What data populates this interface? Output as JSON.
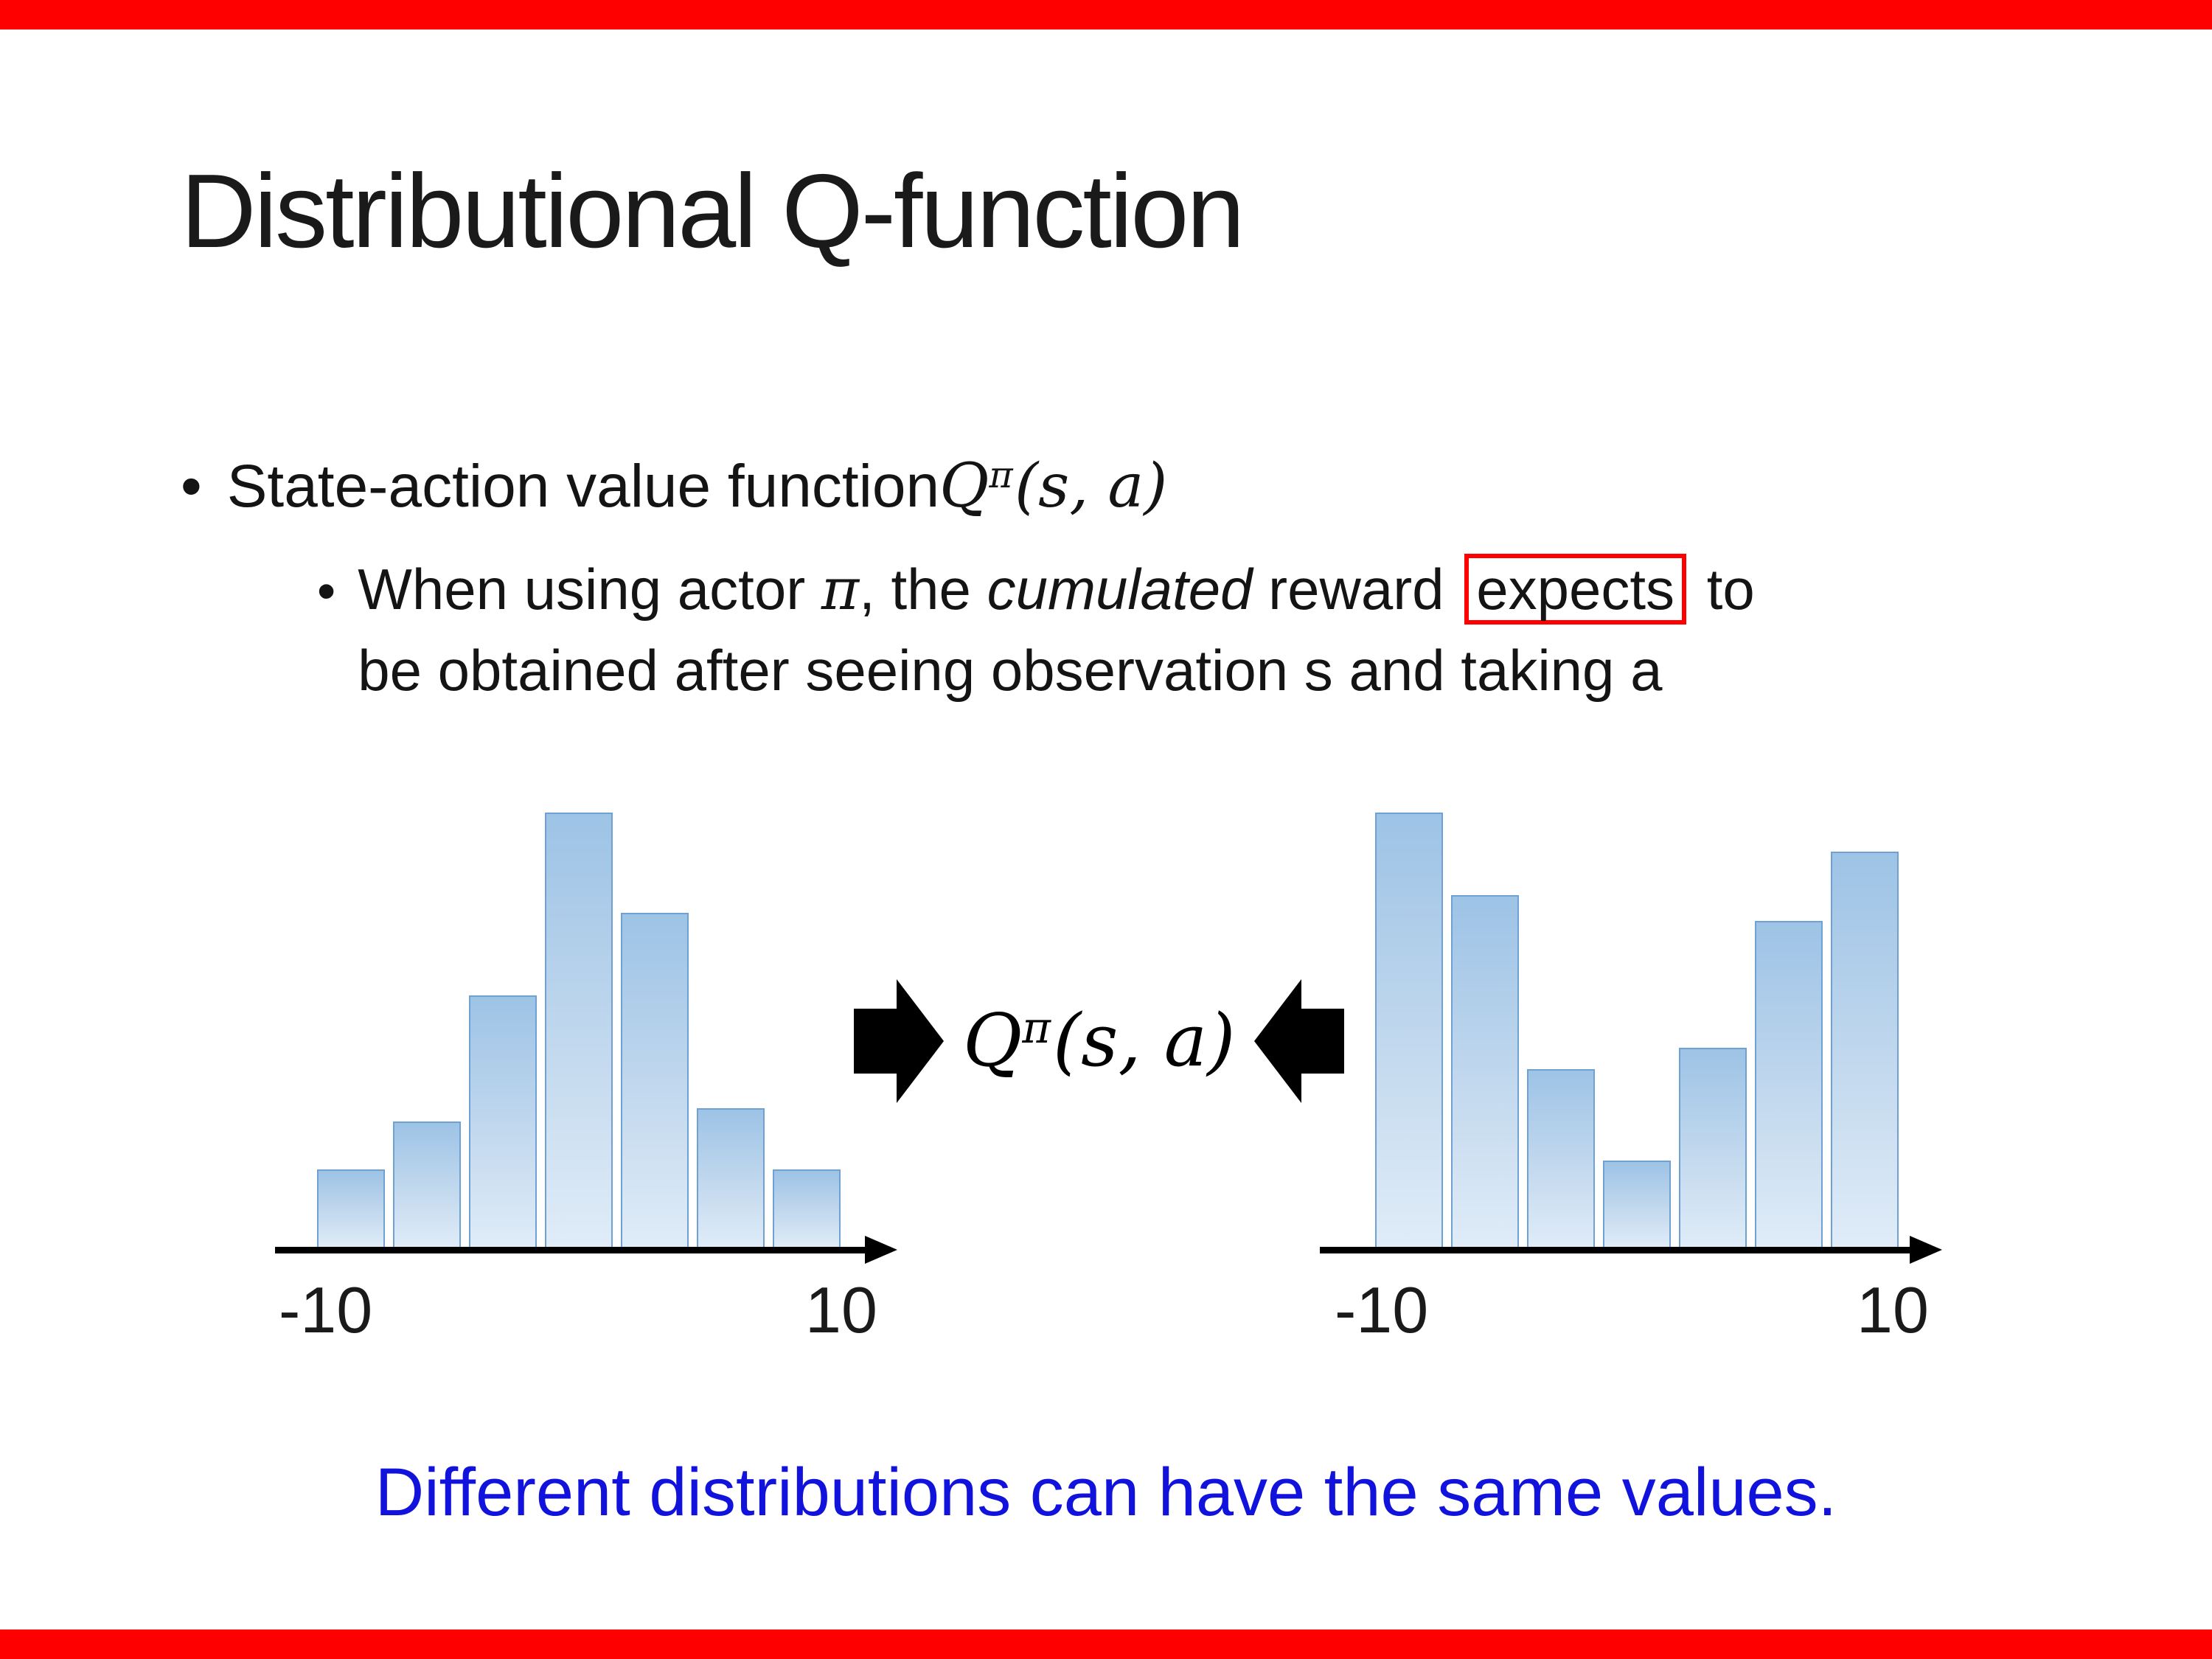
{
  "slide": {
    "bullet_char": "•",
    "title": "Distributional Q-function",
    "accent_red": "#ff0000",
    "footer_text": "Different distributions can have the same values.",
    "footer_color": "#1212dd",
    "bullet": {
      "prefix": "State-action value function ",
      "formula": {
        "q": "Q",
        "sup": "π",
        "args": "(s, a)"
      }
    },
    "sub_bullet": {
      "part1": "When using actor ",
      "pi": "π",
      "part2": ", the ",
      "emphasis": "cumulated",
      "part3": " reward ",
      "boxed": "expects",
      "part4": " to",
      "line2": "be obtained after seeing observation s and taking a"
    }
  },
  "center": {
    "formula": {
      "q": "Q",
      "sup": "π",
      "args": "(s, a)"
    }
  },
  "chart_data": [
    {
      "type": "bar",
      "values": [
        1.8,
        2.9,
        5.8,
        10,
        7.7,
        3.2,
        1.8
      ],
      "x_min_label": "-10",
      "x_max_label": "10",
      "ylim": [
        0,
        10
      ],
      "bar_gradient_top": "#9dc3e6",
      "bar_gradient_bottom": "#e0ecf8",
      "bar_border": "#6fa1d2"
    },
    {
      "type": "bar",
      "values": [
        10,
        8.1,
        4.1,
        2.0,
        4.6,
        7.5,
        9.1
      ],
      "x_min_label": "-10",
      "x_max_label": "10",
      "ylim": [
        0,
        10
      ],
      "bar_gradient_top": "#9dc3e6",
      "bar_gradient_bottom": "#e0ecf8",
      "bar_border": "#6fa1d2"
    }
  ]
}
